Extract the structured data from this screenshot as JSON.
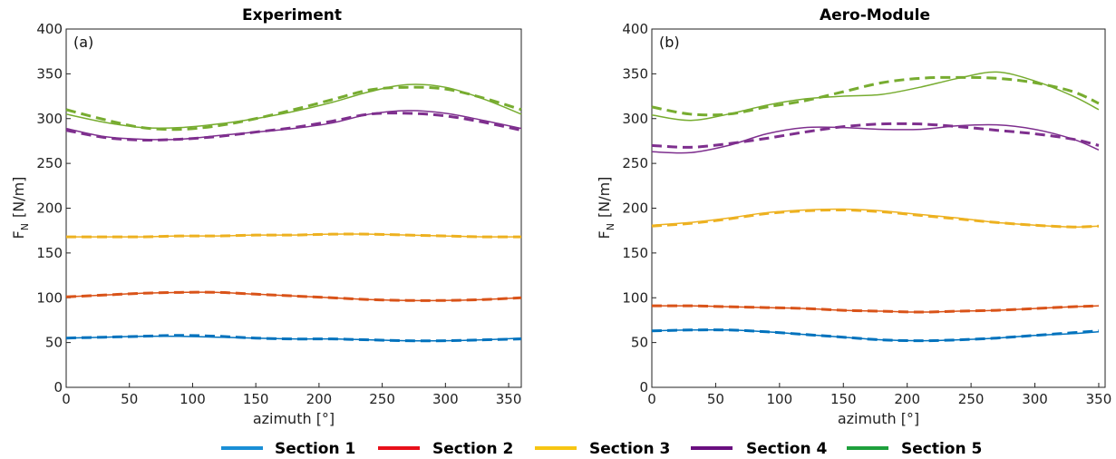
{
  "colors": {
    "section1": "#0072BD",
    "section2": "#D95319",
    "section3": "#EDB120",
    "section4": "#7E2F8E",
    "section5": "#77AC30",
    "legend_section1": "#1a8fd6",
    "legend_section2": "#e8101a",
    "legend_section3": "#f7c512",
    "legend_section4": "#6a0f80",
    "legend_section5": "#1ea03c"
  },
  "legend": {
    "entries": [
      "Section 1",
      "Section 2",
      "Section 3",
      "Section 4",
      "Section 5"
    ],
    "placement": "bottom-center"
  },
  "chart_data": [
    {
      "type": "line",
      "title": "Experiment",
      "panel_label": "(a)",
      "xlabel": "azimuth [°]",
      "ylabel_main": "F",
      "ylabel_sub": "N",
      "ylabel_unit": "[N/m]",
      "xlim": [
        0,
        360
      ],
      "ylim": [
        0,
        400
      ],
      "xticks": [
        0,
        50,
        100,
        150,
        200,
        250,
        300,
        350
      ],
      "yticks": [
        0,
        50,
        100,
        150,
        200,
        250,
        300,
        350,
        400
      ],
      "grid": false,
      "x": [
        0,
        30,
        60,
        90,
        120,
        150,
        180,
        210,
        240,
        270,
        300,
        330,
        360
      ],
      "series": [
        {
          "name": "Section 1",
          "style": "solid",
          "values": [
            55,
            56,
            57,
            57,
            56,
            55,
            54,
            54,
            53,
            52,
            52,
            53,
            55
          ]
        },
        {
          "name": "Section 1",
          "style": "dashed",
          "values": [
            55,
            56,
            57,
            58,
            57,
            55,
            54,
            54,
            53,
            52,
            52,
            53,
            54
          ]
        },
        {
          "name": "Section 2",
          "style": "solid",
          "values": [
            101,
            103,
            105,
            106,
            106,
            104,
            102,
            100,
            98,
            97,
            97,
            98,
            100
          ]
        },
        {
          "name": "Section 2",
          "style": "dashed",
          "values": [
            101,
            103,
            105,
            106,
            106,
            104,
            102,
            100,
            98,
            97,
            97,
            98,
            100
          ]
        },
        {
          "name": "Section 3",
          "style": "solid",
          "values": [
            168,
            168,
            168,
            169,
            169,
            170,
            170,
            171,
            171,
            170,
            169,
            168,
            168
          ]
        },
        {
          "name": "Section 3",
          "style": "dashed",
          "values": [
            168,
            168,
            168,
            169,
            169,
            170,
            170,
            171,
            171,
            170,
            169,
            168,
            168
          ]
        },
        {
          "name": "Section 4",
          "style": "solid",
          "values": [
            289,
            280,
            277,
            277,
            281,
            285,
            289,
            295,
            305,
            309,
            306,
            298,
            289
          ]
        },
        {
          "name": "Section 4",
          "style": "dashed",
          "values": [
            287,
            279,
            276,
            277,
            280,
            285,
            290,
            297,
            305,
            306,
            303,
            296,
            287
          ]
        },
        {
          "name": "Section 5",
          "style": "solid",
          "values": [
            305,
            296,
            290,
            290,
            294,
            300,
            308,
            318,
            330,
            338,
            335,
            322,
            305
          ]
        },
        {
          "name": "Section 5",
          "style": "dashed",
          "values": [
            310,
            299,
            290,
            288,
            292,
            300,
            310,
            321,
            332,
            335,
            333,
            323,
            310
          ]
        }
      ]
    },
    {
      "type": "line",
      "title": "Aero-Module",
      "panel_label": "(b)",
      "xlabel": "azimuth [°]",
      "ylabel_main": "F",
      "ylabel_sub": "N",
      "ylabel_unit": "[N/m]",
      "xlim": [
        0,
        355
      ],
      "ylim": [
        0,
        400
      ],
      "xticks": [
        0,
        50,
        100,
        150,
        200,
        250,
        300,
        350
      ],
      "yticks": [
        0,
        50,
        100,
        150,
        200,
        250,
        300,
        350,
        400
      ],
      "grid": false,
      "x": [
        0,
        30,
        60,
        90,
        120,
        150,
        180,
        210,
        240,
        270,
        300,
        330,
        350
      ],
      "series": [
        {
          "name": "Section 1",
          "style": "solid",
          "values": [
            63,
            64,
            64,
            62,
            59,
            56,
            53,
            52,
            53,
            55,
            58,
            60,
            62
          ]
        },
        {
          "name": "Section 1",
          "style": "dashed",
          "values": [
            63,
            64,
            64,
            62,
            59,
            56,
            53,
            52,
            53,
            55,
            58,
            61,
            63
          ]
        },
        {
          "name": "Section 2",
          "style": "solid",
          "values": [
            91,
            91,
            90,
            89,
            88,
            86,
            85,
            84,
            85,
            86,
            88,
            90,
            91
          ]
        },
        {
          "name": "Section 2",
          "style": "dashed",
          "values": [
            91,
            91,
            90,
            89,
            88,
            86,
            85,
            84,
            85,
            86,
            88,
            90,
            91
          ]
        },
        {
          "name": "Section 3",
          "style": "solid",
          "values": [
            181,
            184,
            189,
            195,
            198,
            199,
            197,
            193,
            189,
            184,
            181,
            179,
            180
          ]
        },
        {
          "name": "Section 3",
          "style": "dashed",
          "values": [
            180,
            183,
            188,
            194,
            197,
            198,
            196,
            192,
            188,
            184,
            181,
            179,
            180
          ]
        },
        {
          "name": "Section 4",
          "style": "solid",
          "values": [
            263,
            262,
            270,
            283,
            290,
            290,
            288,
            288,
            292,
            293,
            288,
            277,
            265
          ]
        },
        {
          "name": "Section 4",
          "style": "dashed",
          "values": [
            270,
            268,
            272,
            278,
            285,
            291,
            294,
            294,
            291,
            287,
            283,
            277,
            270
          ]
        },
        {
          "name": "Section 5",
          "style": "solid",
          "values": [
            304,
            298,
            305,
            315,
            322,
            325,
            327,
            335,
            345,
            352,
            342,
            325,
            310
          ]
        },
        {
          "name": "Section 5",
          "style": "dashed",
          "values": [
            313,
            305,
            305,
            313,
            320,
            330,
            340,
            345,
            346,
            345,
            340,
            330,
            317
          ]
        }
      ]
    }
  ]
}
